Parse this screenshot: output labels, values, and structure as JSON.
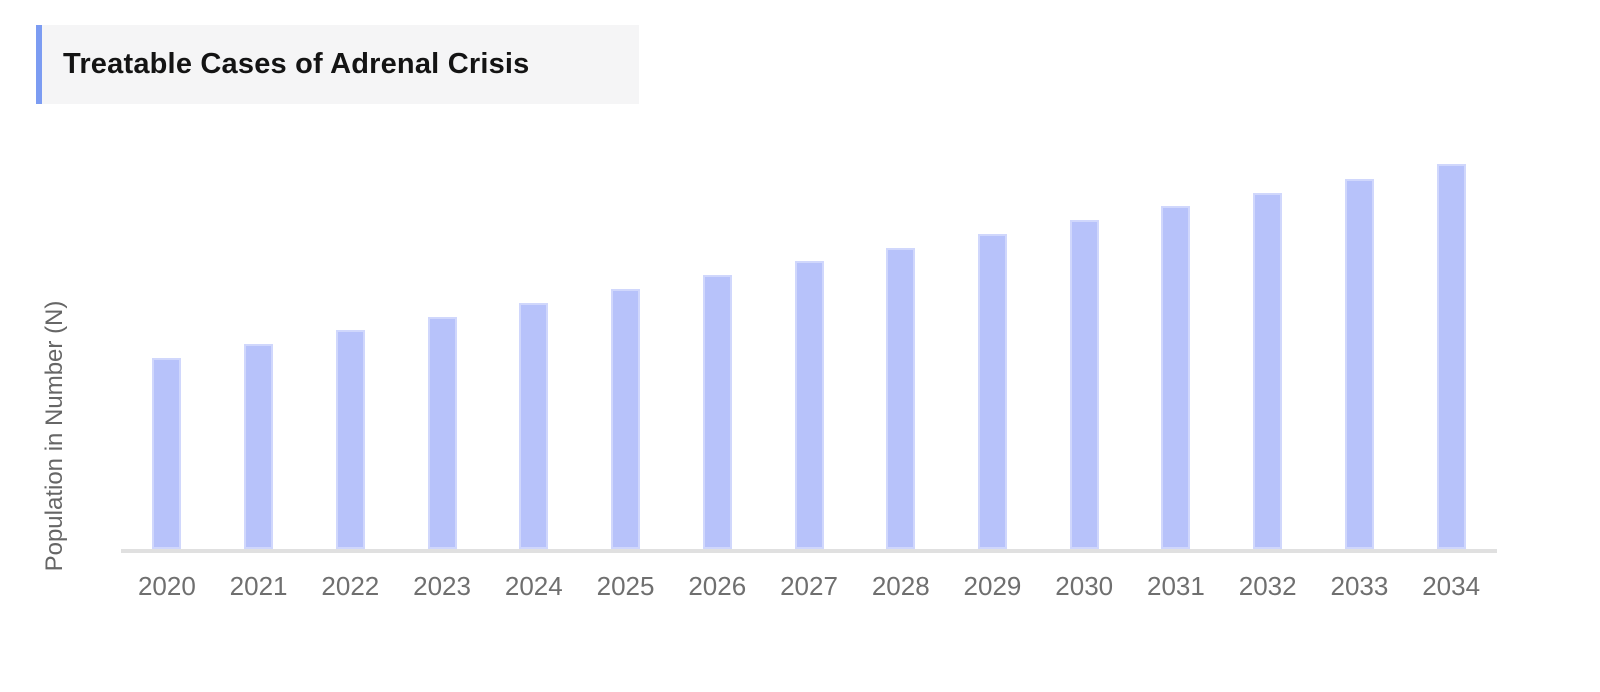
{
  "header": {
    "title": "Treatable Cases of Adrenal Crisis"
  },
  "colors": {
    "accent_blue": "#7c9cf2",
    "title_background": "#f5f5f6",
    "title_text": "#141414",
    "bar_fill": "#b7c2fa",
    "axis_line": "#e0e0e0",
    "tick_label": "#6f6f6f",
    "axis_label": "#666666",
    "page_background": "#ffffff"
  },
  "chart_data": {
    "type": "bar",
    "title": "Treatable Cases of Adrenal Crisis",
    "xlabel": "",
    "ylabel": "Population in Number (N)",
    "categories": [
      "2020",
      "2021",
      "2022",
      "2023",
      "2024",
      "2025",
      "2026",
      "2027",
      "2028",
      "2029",
      "2030",
      "2031",
      "2032",
      "2033",
      "2034"
    ],
    "values": [
      49.6,
      53.2,
      56.9,
      60.3,
      63.9,
      67.5,
      71.2,
      74.8,
      78.2,
      81.8,
      85.5,
      89.1,
      92.5,
      96.1,
      100.0
    ],
    "values_unit": "relative index (y-axis has no numeric scale; tallest bar 2034 = 100)",
    "ylim": [
      0,
      100
    ],
    "grid": false,
    "legend": false,
    "value_labels": false,
    "bar_color": "#b7c2fa"
  }
}
